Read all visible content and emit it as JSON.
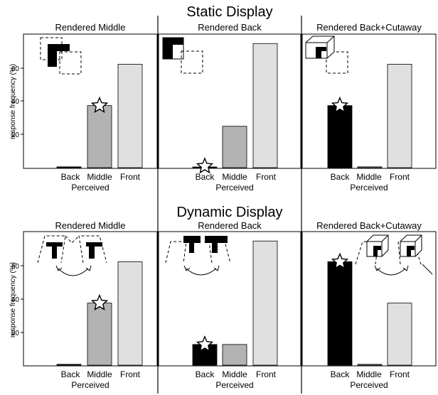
{
  "sections": [
    {
      "title": "Static Display"
    },
    {
      "title": "Dynamic Display"
    }
  ],
  "y_axis_label": "response frequency (%)",
  "x_axis_label": "Perceived",
  "chart_data": [
    {
      "type": "bar",
      "section": "Static Display",
      "title": "Rendered Middle",
      "categories": [
        "Back",
        "Middle",
        "Front"
      ],
      "values": [
        0.5,
        37.5,
        62.5
      ],
      "colors": [
        "#000000",
        "#b3b3b3",
        "#e0e0e0"
      ],
      "star_on": "Middle",
      "ylabel": "response frequency (%)",
      "xlabel": "Perceived",
      "yticks": [
        20,
        40,
        60
      ],
      "ylim": [
        0,
        78
      ]
    },
    {
      "type": "bar",
      "section": "Static Display",
      "title": "Rendered Back",
      "categories": [
        "Back",
        "Middle",
        "Front"
      ],
      "values": [
        0,
        25,
        75
      ],
      "colors": [
        "#000000",
        "#b3b3b3",
        "#e0e0e0"
      ],
      "star_on": "Back",
      "xlabel": "Perceived",
      "ylim": [
        0,
        78
      ]
    },
    {
      "type": "bar",
      "section": "Static Display",
      "title": "Rendered Back+Cutaway",
      "categories": [
        "Back",
        "Middle",
        "Front"
      ],
      "values": [
        37.5,
        0.5,
        62.5
      ],
      "colors": [
        "#000000",
        "#b3b3b3",
        "#e0e0e0"
      ],
      "star_on": "Back",
      "xlabel": "Perceived",
      "ylim": [
        0,
        78
      ]
    },
    {
      "type": "bar",
      "section": "Dynamic Display",
      "title": "Rendered Middle",
      "categories": [
        "Back",
        "Middle",
        "Front"
      ],
      "values": [
        0.5,
        37.5,
        62.5
      ],
      "colors": [
        "#000000",
        "#b3b3b3",
        "#e0e0e0"
      ],
      "star_on": "Middle",
      "ylabel": "response frequency (%)",
      "xlabel": "Perceived",
      "yticks": [
        20,
        40,
        60
      ],
      "ylim": [
        0,
        78
      ]
    },
    {
      "type": "bar",
      "section": "Dynamic Display",
      "title": "Rendered Back",
      "categories": [
        "Back",
        "Middle",
        "Front"
      ],
      "values": [
        12.5,
        12.5,
        75
      ],
      "colors": [
        "#000000",
        "#b3b3b3",
        "#e0e0e0"
      ],
      "star_on": "Back",
      "xlabel": "Perceived",
      "ylim": [
        0,
        78
      ]
    },
    {
      "type": "bar",
      "section": "Dynamic Display",
      "title": "Rendered Back+Cutaway",
      "categories": [
        "Back",
        "Middle",
        "Front"
      ],
      "values": [
        62.5,
        0.5,
        37.5
      ],
      "colors": [
        "#000000",
        "#b3b3b3",
        "#e0e0e0"
      ],
      "star_on": "Back",
      "xlabel": "Perceived",
      "ylim": [
        0,
        78
      ]
    }
  ]
}
